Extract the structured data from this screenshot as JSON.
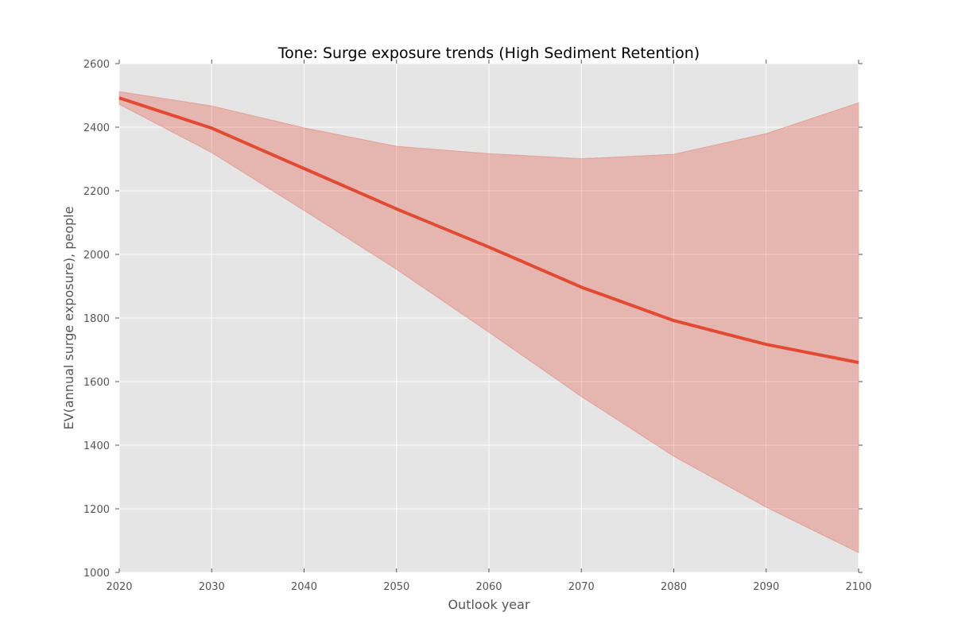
{
  "chart_data": {
    "type": "line",
    "title": "Tone: Surge exposure trends (High Sediment Retention)",
    "xlabel": "Outlook year",
    "ylabel": "EV(annual surge exposure), people",
    "xlim": [
      2020,
      2100
    ],
    "ylim": [
      1000,
      2600
    ],
    "x_ticks": [
      2020,
      2030,
      2040,
      2050,
      2060,
      2070,
      2080,
      2090,
      2100
    ],
    "y_ticks": [
      1000,
      1200,
      1400,
      1600,
      1800,
      2000,
      2200,
      2400,
      2600
    ],
    "grid": true,
    "legend": "none",
    "x": [
      2020,
      2030,
      2040,
      2050,
      2060,
      2070,
      2080,
      2090,
      2100
    ],
    "series": [
      {
        "values": [
          2492,
          2397,
          2270,
          2143,
          2023,
          1897,
          1792,
          1717,
          1660
        ],
        "lower": [
          2472,
          2320,
          2138,
          1953,
          1755,
          1553,
          1365,
          1205,
          1062
        ],
        "upper": [
          2512,
          2467,
          2398,
          2340,
          2317,
          2301,
          2315,
          2380,
          2477
        ],
        "color": "#e24a33",
        "band_color": "#e24a33"
      }
    ],
    "colors": {
      "plot_background": "#e5e5e5",
      "grid": "#ffffff",
      "tick_text": "#555555"
    }
  }
}
